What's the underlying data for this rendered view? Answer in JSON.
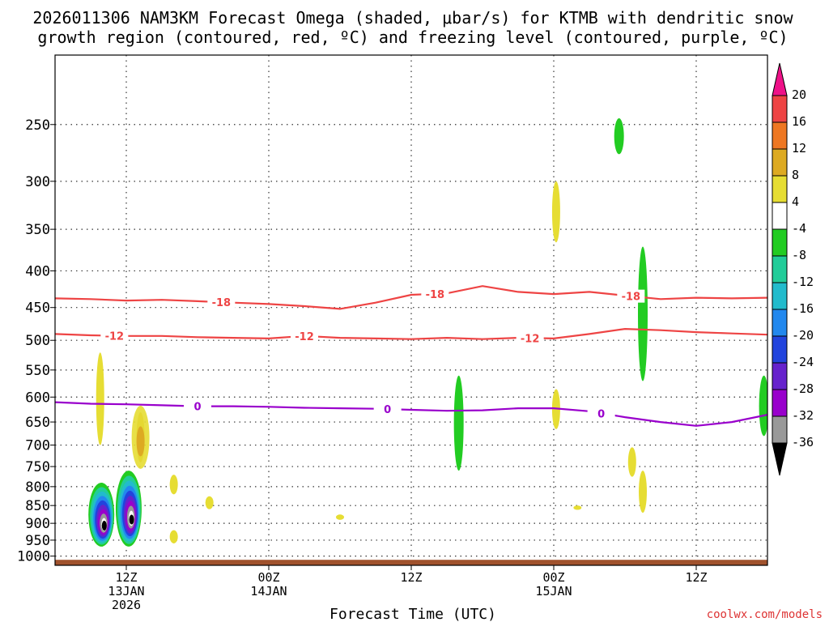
{
  "chart_data": {
    "type": "contour",
    "title_line1": "2026011306 NAM3KM Forecast Omega (shaded, μbar/s) for KTMB with dendritic snow",
    "title_line2": "growth region (contoured, red, ºC) and freezing level (contoured, purple, ºC)",
    "xlabel": "Forecast Time (UTC)",
    "credit": "coolwx.com/models",
    "x_range_hours": [
      0,
      60
    ],
    "y_range_hpa": [
      200,
      1030
    ],
    "y_ticks": [
      250,
      300,
      350,
      400,
      450,
      500,
      550,
      600,
      650,
      700,
      750,
      800,
      850,
      900,
      950,
      1000
    ],
    "x_ticks": [
      {
        "hour": 6,
        "l1": "12Z",
        "l2": "13JAN",
        "l3": "2026"
      },
      {
        "hour": 18,
        "l1": "00Z",
        "l2": "14JAN",
        "l3": ""
      },
      {
        "hour": 30,
        "l1": "12Z",
        "l2": "",
        "l3": ""
      },
      {
        "hour": 42,
        "l1": "00Z",
        "l2": "15JAN",
        "l3": ""
      },
      {
        "hour": 54,
        "l1": "12Z",
        "l2": "",
        "l3": ""
      }
    ],
    "contours": [
      {
        "name": "-18C isotherm",
        "color": "#ee4444",
        "label": "-18",
        "x": [
          0,
          3,
          6,
          9,
          12,
          15,
          18,
          21,
          24,
          27,
          30,
          33,
          36,
          39,
          42,
          45,
          48,
          51,
          54,
          57,
          60
        ],
        "y": [
          437,
          438,
          440,
          439,
          441,
          443,
          445,
          448,
          452,
          443,
          432,
          430,
          420,
          428,
          431,
          428,
          433,
          438,
          436,
          437,
          436
        ],
        "label_hours": [
          14,
          32,
          48.5
        ]
      },
      {
        "name": "-12C isotherm",
        "color": "#ee4444",
        "label": "-12",
        "x": [
          0,
          3,
          6,
          9,
          12,
          15,
          18,
          21,
          24,
          27,
          30,
          33,
          36,
          39,
          42,
          45,
          48,
          51,
          54,
          57,
          60
        ],
        "y": [
          490,
          492,
          493,
          493,
          495,
          496,
          497,
          493,
          496,
          497,
          498,
          496,
          498,
          496,
          497,
          490,
          482,
          484,
          487,
          489,
          491
        ],
        "label_hours": [
          5,
          21,
          40
        ]
      },
      {
        "name": "0C freezing level",
        "color": "#9900cc",
        "label": "0",
        "x": [
          0,
          3,
          6,
          9,
          12,
          15,
          18,
          21,
          24,
          27,
          30,
          33,
          36,
          39,
          42,
          45,
          48,
          51,
          54,
          57,
          60
        ],
        "y": [
          610,
          613,
          614,
          616,
          618,
          618,
          619,
          621,
          622,
          623,
          625,
          627,
          626,
          622,
          622,
          628,
          640,
          650,
          658,
          650,
          635
        ],
        "label_hours": [
          12,
          28,
          46
        ]
      }
    ],
    "omega_features": [
      {
        "hour": 3.9,
        "p_top": 790,
        "p_bot": 970,
        "value": -36,
        "color": "#111111"
      },
      {
        "hour": 6.2,
        "p_top": 760,
        "p_bot": 970,
        "value": -36,
        "color": "#111111"
      },
      {
        "hour": 7.2,
        "p_top": 630,
        "p_bot": 740,
        "value": 8,
        "color": "#ddaa22"
      },
      {
        "hour": 3.8,
        "p_top": 520,
        "p_bot": 700,
        "value": 4,
        "color": "#e6dd33"
      },
      {
        "hour": 10,
        "p_top": 770,
        "p_bot": 820,
        "value": 4,
        "color": "#e6dd33"
      },
      {
        "hour": 10,
        "p_top": 920,
        "p_bot": 960,
        "value": 4,
        "color": "#e6dd33"
      },
      {
        "hour": 13,
        "p_top": 825,
        "p_bot": 860,
        "value": 4,
        "color": "#e6dd33"
      },
      {
        "hour": 24,
        "p_top": 875,
        "p_bot": 890,
        "value": 4,
        "color": "#e6dd33"
      },
      {
        "hour": 34,
        "p_top": 560,
        "p_bot": 760,
        "value": -8,
        "color": "#22cc22"
      },
      {
        "hour": 42.2,
        "p_top": 300,
        "p_bot": 365,
        "value": 4,
        "color": "#e6dd33"
      },
      {
        "hour": 42.2,
        "p_top": 585,
        "p_bot": 665,
        "value": 4,
        "color": "#e6dd33"
      },
      {
        "hour": 44,
        "p_top": 850,
        "p_bot": 862,
        "value": 4,
        "color": "#e6dd33"
      },
      {
        "hour": 47.5,
        "p_top": 245,
        "p_bot": 275,
        "value": -8,
        "color": "#22cc22"
      },
      {
        "hour": 49.5,
        "p_top": 370,
        "p_bot": 570,
        "value": -8,
        "color": "#22cc22"
      },
      {
        "hour": 49.5,
        "p_top": 760,
        "p_bot": 870,
        "value": 4,
        "color": "#e6dd33"
      },
      {
        "hour": 48.6,
        "p_top": 705,
        "p_bot": 775,
        "value": 4,
        "color": "#e6dd33"
      },
      {
        "hour": 59.7,
        "p_top": 560,
        "p_bot": 680,
        "value": -8,
        "color": "#22cc22"
      }
    ],
    "colorbar": {
      "labels": [
        "20",
        "16",
        "12",
        "8",
        "4",
        "-4",
        "-8",
        "-12",
        "-16",
        "-20",
        "-24",
        "-28",
        "-32",
        "-36"
      ],
      "colors": [
        "#ee4444",
        "#ee7722",
        "#ddaa22",
        "#e6dd33",
        "#ffffff",
        "#22cc22",
        "#22cc99",
        "#22bbcc",
        "#2288ee",
        "#2244dd",
        "#6622cc",
        "#9900cc",
        "#999999",
        "#000000"
      ],
      "top_color": "#ee1188"
    }
  }
}
